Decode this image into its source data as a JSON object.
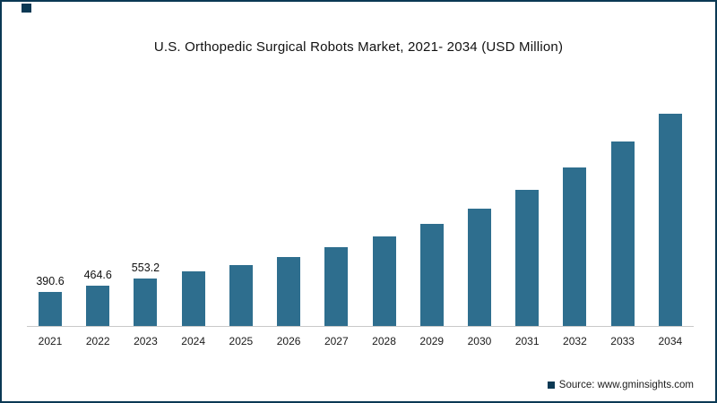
{
  "title": "U.S. Orthopedic Surgical Robots Market, 2021- 2034 (USD Million)",
  "source": "Source: www.gminsights.com",
  "colors": {
    "bar": "#2e6e8e",
    "frame_border": "#0b3954",
    "axis_line": "#c9c9c9"
  },
  "chart_data": {
    "type": "bar",
    "title": "U.S. Orthopedic Surgical Robots Market, 2021- 2034 (USD Million)",
    "categories": [
      "2021",
      "2022",
      "2023",
      "2024",
      "2025",
      "2026",
      "2027",
      "2028",
      "2029",
      "2030",
      "2031",
      "2032",
      "2033",
      "2034"
    ],
    "values": [
      390.6,
      464.6,
      553.2,
      634,
      707,
      801,
      915,
      1040,
      1186,
      1362,
      1581,
      1841,
      2142,
      2465
    ],
    "bar_labels": [
      "390.6",
      "464.6",
      "553.2",
      "",
      "",
      "",
      "",
      "",
      "",
      "",
      "",
      "",
      "",
      ""
    ],
    "xlabel": "",
    "ylabel": "",
    "ylim": [
      0,
      2500
    ],
    "grid": false,
    "legend": false,
    "bar_color": "#2e6e8e"
  }
}
